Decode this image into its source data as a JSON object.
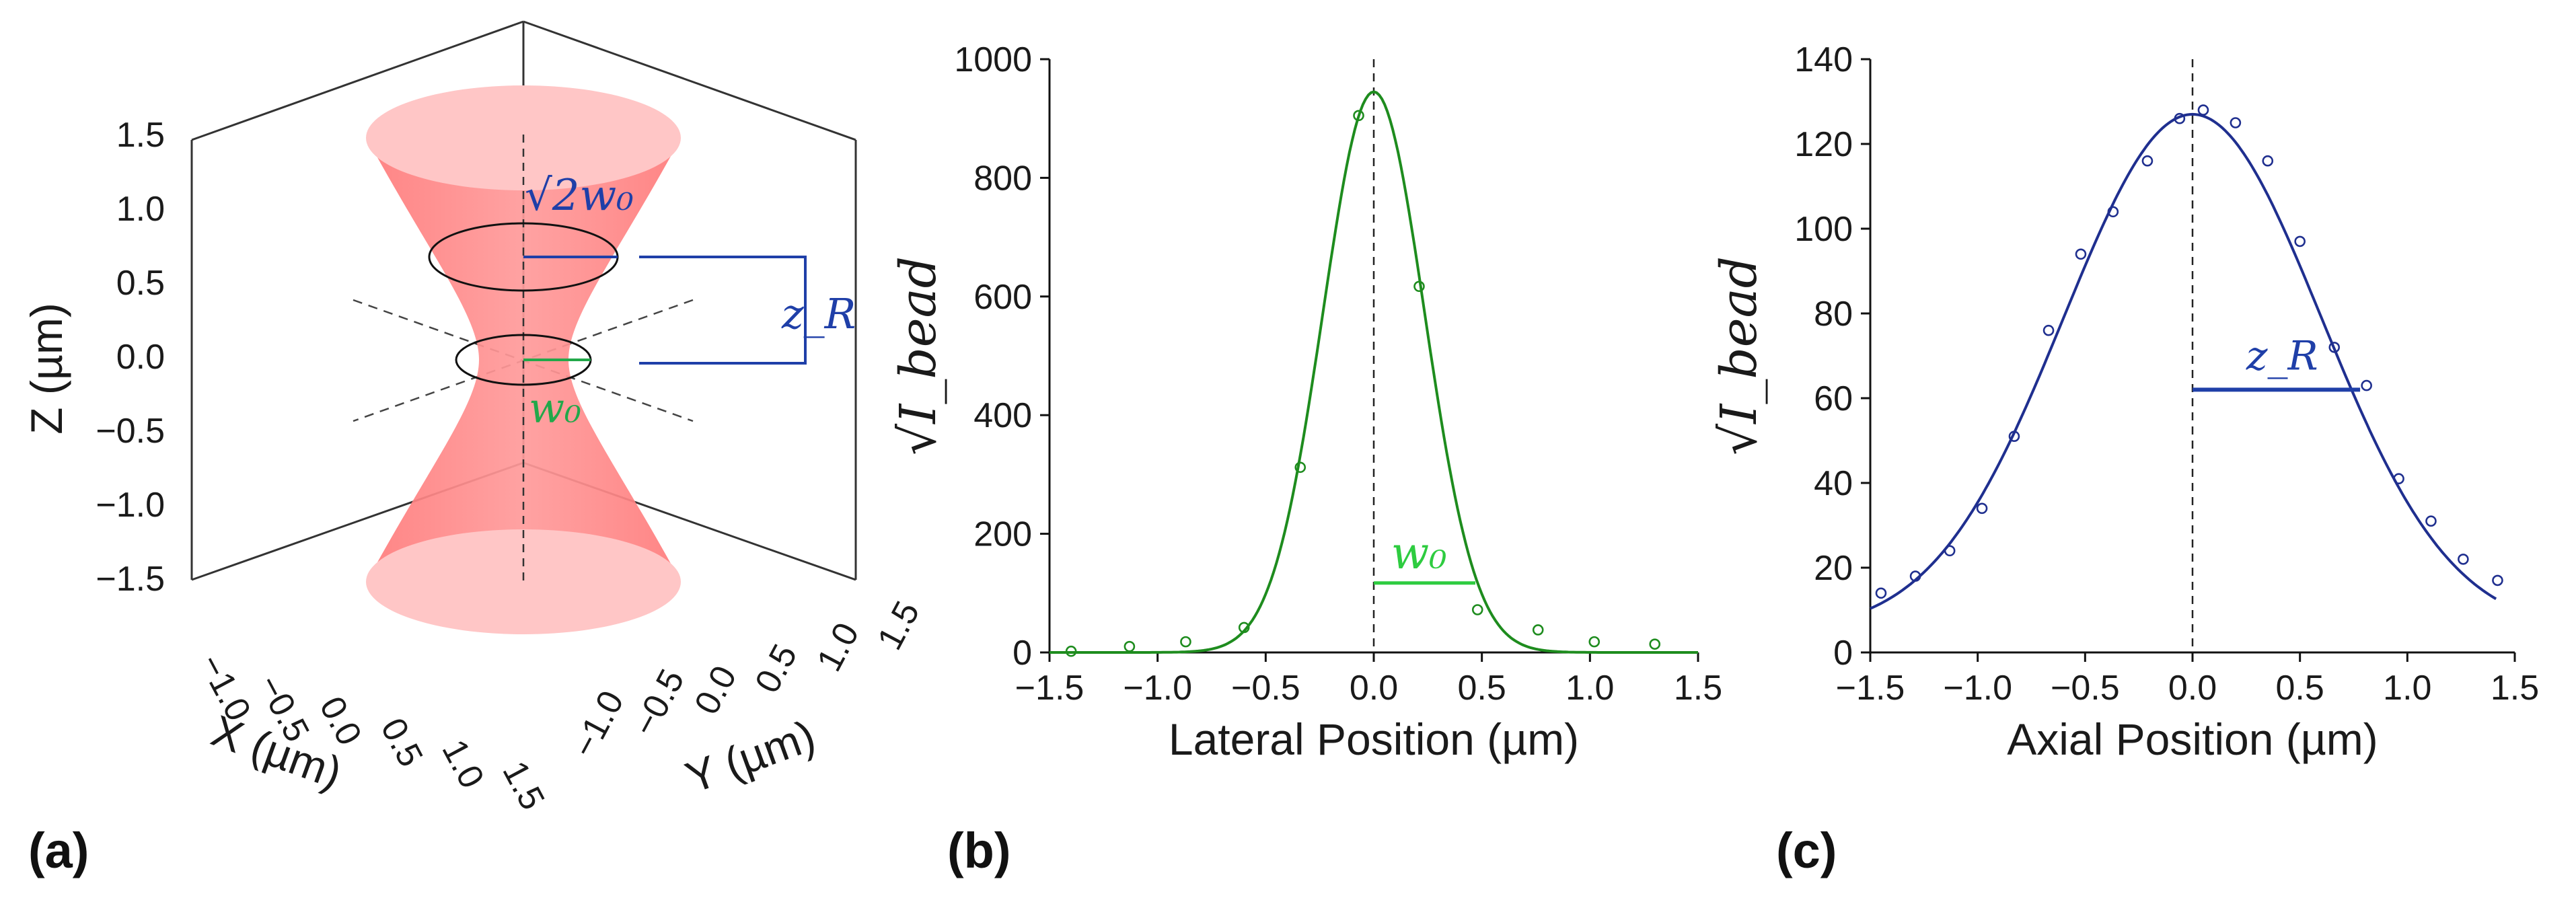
{
  "panels": {
    "a": {
      "label": "(a)",
      "z_axis_label": "Z (µm)",
      "x_axis_label": "X (µm)",
      "y_axis_label": "Y (µm)",
      "z_ticks": [
        "1.5",
        "1.0",
        "0.5",
        "0.0",
        "−0.5",
        "−1.0",
        "−1.5"
      ],
      "x_ticks": [
        "−1.0",
        "−0.5",
        "0.0",
        "0.5",
        "1.0",
        "1.5"
      ],
      "y_ticks": [
        "−1.0",
        "−0.5",
        "0.0",
        "0.5",
        "1.0",
        "1.5"
      ],
      "annotations": {
        "waist_label": "w₀",
        "sqrt2_label": "√2w₀",
        "rayleigh_label": "z_R"
      },
      "colors": {
        "beam": "#ff8a8a",
        "beam_cap": "#ffc4c4",
        "waist": "#22a84a",
        "rayleigh": "#1f3fa8"
      }
    },
    "b": {
      "label": "(b)",
      "annotation": "w₀",
      "annotation_color": "#2ecc40"
    },
    "c": {
      "label": "(c)",
      "annotation": "z_R",
      "annotation_color": "#1f3fa8"
    }
  },
  "chart_data": [
    {
      "id": "b",
      "type": "scatter",
      "title": "",
      "xlabel": "Lateral Position (µm)",
      "ylabel": "√I_bead",
      "xlim": [
        -1.5,
        1.5
      ],
      "ylim": [
        0,
        1000
      ],
      "xticks": [
        -1.5,
        -1.0,
        -0.5,
        0.0,
        0.5,
        1.0,
        1.5
      ],
      "yticks": [
        0,
        200,
        400,
        600,
        800,
        1000
      ],
      "xtick_labels": [
        "−1.5",
        "−1.0",
        "−0.5",
        "0.0",
        "0.5",
        "1.0",
        "1.5"
      ],
      "ytick_labels": [
        "0",
        "200",
        "400",
        "600",
        "800",
        "1000"
      ],
      "color": "#1e8c1e",
      "points": {
        "x": [
          -1.4,
          -1.13,
          -0.87,
          -0.6,
          -0.34,
          -0.07,
          0.21,
          0.48,
          0.76,
          1.02,
          1.3
        ],
        "y": [
          2,
          10,
          18,
          42,
          312,
          905,
          617,
          72,
          38,
          18,
          14
        ]
      },
      "fit": {
        "model": "gaussian",
        "amplitude": 945,
        "center": 0.0,
        "w0": 0.47,
        "offset": 0
      },
      "marker": {
        "w0": 0.47,
        "y": 117
      }
    },
    {
      "id": "c",
      "type": "scatter",
      "title": "",
      "xlabel": "Axial Position (µm)",
      "ylabel": "√I_bead",
      "xlim": [
        -1.5,
        1.5
      ],
      "ylim": [
        0,
        140
      ],
      "xticks": [
        -1.5,
        -1.0,
        -0.5,
        0.0,
        0.5,
        1.0,
        1.5
      ],
      "yticks": [
        0,
        20,
        40,
        60,
        80,
        100,
        120,
        140
      ],
      "xtick_labels": [
        "−1.5",
        "−1.0",
        "−0.5",
        "0.0",
        "0.5",
        "1.0",
        "1.5"
      ],
      "ytick_labels": [
        "0",
        "20",
        "40",
        "60",
        "80",
        "100",
        "120",
        "140"
      ],
      "color": "#1f2f8f",
      "points": {
        "x": [
          -1.45,
          -1.29,
          -1.13,
          -0.98,
          -0.83,
          -0.67,
          -0.52,
          -0.37,
          -0.21,
          -0.06,
          0.05,
          0.2,
          0.35,
          0.5,
          0.66,
          0.81,
          0.96,
          1.11,
          1.26,
          1.42
        ],
        "y": [
          14,
          18,
          24,
          34,
          51,
          76,
          94,
          104,
          116,
          126,
          128,
          125,
          116,
          97,
          72,
          63,
          41,
          31,
          22,
          17
        ]
      },
      "fit": {
        "model": "gaussian",
        "amplitude": 122,
        "center": 0.0,
        "sigma": 0.6,
        "offset": 5
      },
      "marker": {
        "zR": 0.78,
        "y": 62
      }
    }
  ]
}
